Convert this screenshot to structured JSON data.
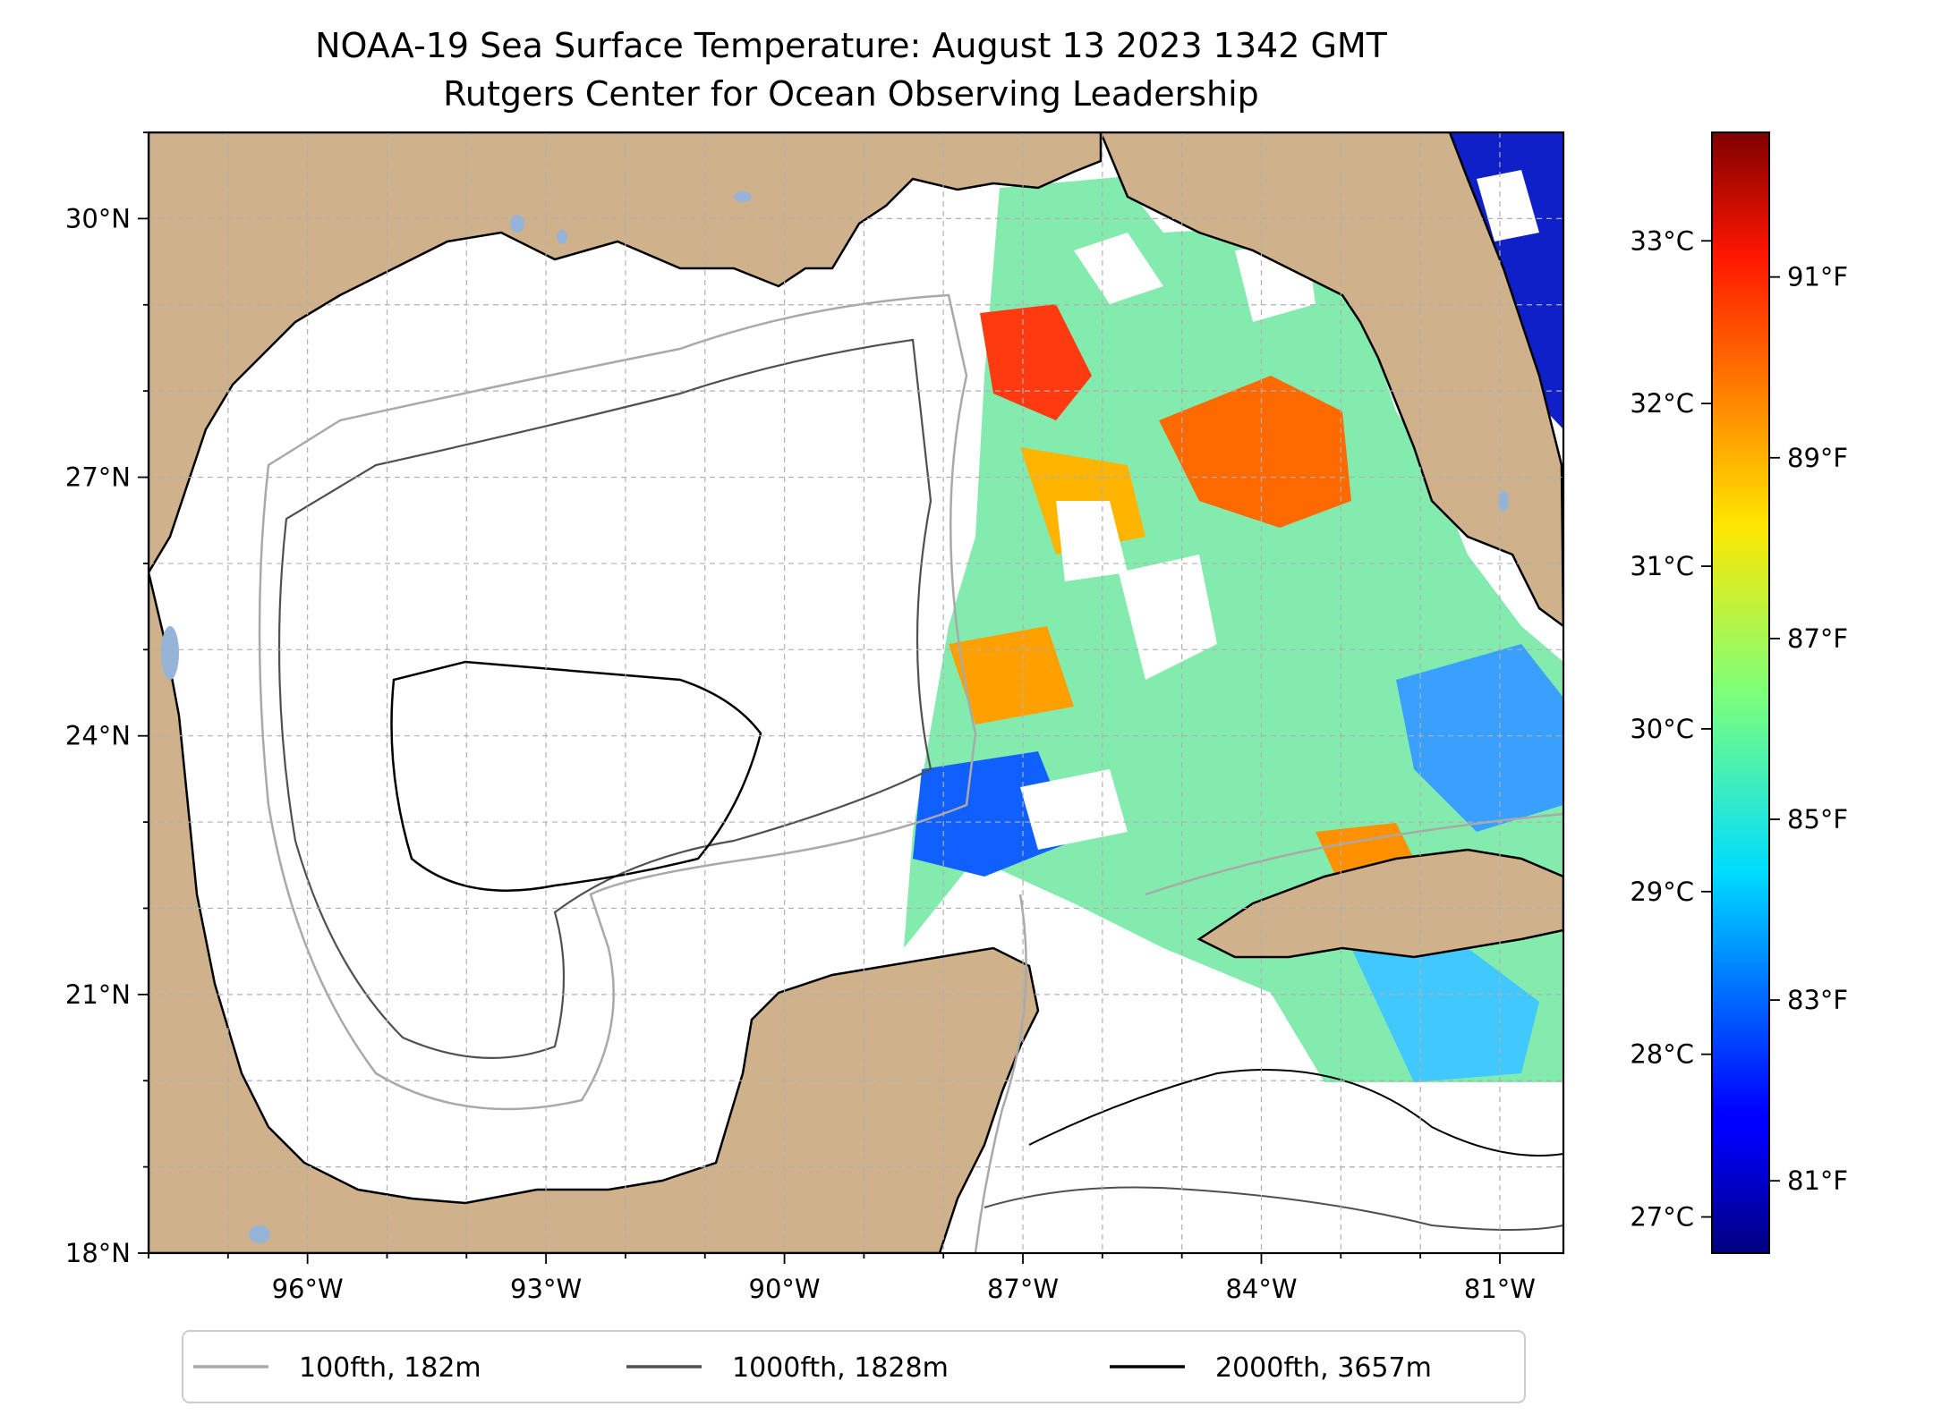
{
  "title": {
    "line1": "NOAA-19 Sea Surface Temperature: August 13 2023 1342 GMT",
    "line2": "Rutgers Center for Ocean Observing Leadership"
  },
  "map": {
    "lon_range": [
      -98.0,
      -80.2
    ],
    "lat_range": [
      18.0,
      31.0
    ],
    "lon_ticks": [
      {
        "value": -96,
        "label": "96°W"
      },
      {
        "value": -93,
        "label": "93°W"
      },
      {
        "value": -90,
        "label": "90°W"
      },
      {
        "value": -87,
        "label": "87°W"
      },
      {
        "value": -84,
        "label": "84°W"
      },
      {
        "value": -81,
        "label": "81°W"
      }
    ],
    "lat_ticks": [
      {
        "value": 30,
        "label": "30°N"
      },
      {
        "value": 27,
        "label": "27°N"
      },
      {
        "value": 24,
        "label": "24°N"
      },
      {
        "value": 21,
        "label": "21°N"
      },
      {
        "value": 18,
        "label": "18°N"
      }
    ],
    "gridlines": true,
    "colors": {
      "land": "#cfb28b",
      "ocean": "#ffffff",
      "lakes": "#96b4d8",
      "coast": "#000000"
    }
  },
  "legend": {
    "placement": "bottom-center",
    "items": [
      {
        "label": "100fth, 182m",
        "color": "#a9a9a9"
      },
      {
        "label": "1000fth, 1828m",
        "color": "#505050"
      },
      {
        "label": "2000fth, 3657m",
        "color": "#000000"
      }
    ]
  },
  "colorbar": {
    "colormap": "jet",
    "range_f": [
      80.2,
      92.6
    ],
    "celsius_ticks": [
      {
        "value": 33,
        "label": "33°C"
      },
      {
        "value": 32,
        "label": "32°C"
      },
      {
        "value": 31,
        "label": "31°C"
      },
      {
        "value": 30,
        "label": "30°C"
      },
      {
        "value": 29,
        "label": "29°C"
      },
      {
        "value": 28,
        "label": "28°C"
      },
      {
        "value": 27,
        "label": "27°C"
      }
    ],
    "fahrenheit_ticks": [
      {
        "value": 91,
        "label": "91°F"
      },
      {
        "value": 89,
        "label": "89°F"
      },
      {
        "value": 87,
        "label": "87°F"
      },
      {
        "value": 85,
        "label": "85°F"
      },
      {
        "value": 83,
        "label": "83°F"
      },
      {
        "value": 81,
        "label": "81°F"
      }
    ]
  }
}
